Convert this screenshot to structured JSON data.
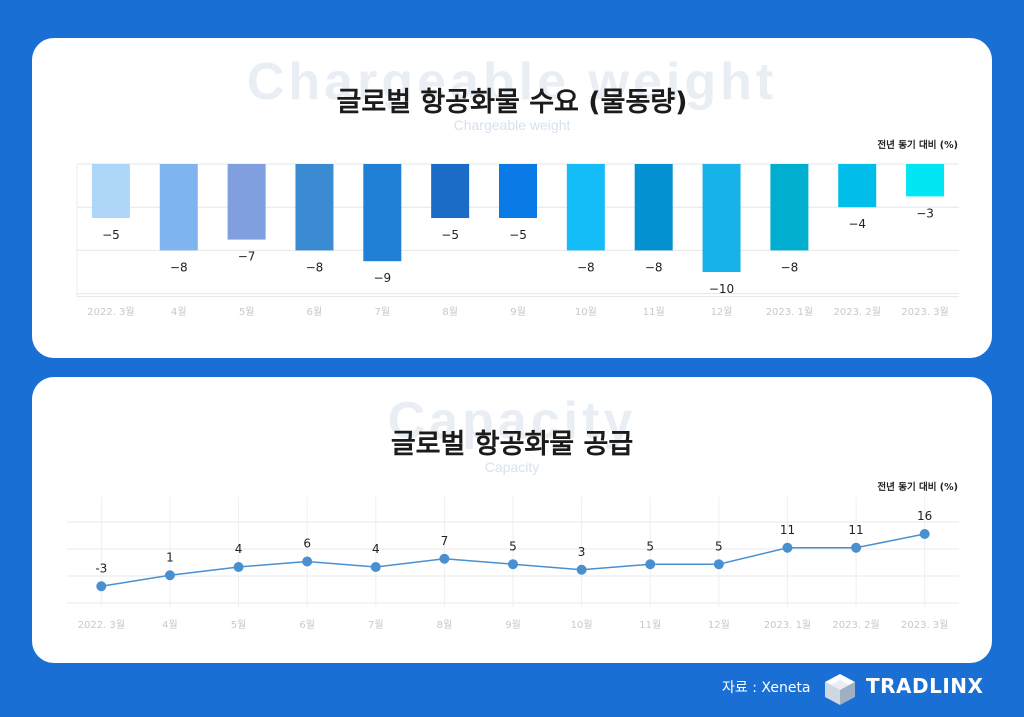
{
  "chart_data": [
    {
      "type": "bar",
      "title": "글로벌 항공화물 수요 (물동량)",
      "subtitle": "Chargeable weight",
      "watermark": "Chargeable weight",
      "unit_label": "전년 동기 대비 (%)",
      "categories": [
        "2022. 3월",
        "4월",
        "5월",
        "6월",
        "7월",
        "8월",
        "9월",
        "10월",
        "11월",
        "12월",
        "2023. 1월",
        "2023. 2월",
        "2023. 3월"
      ],
      "values": [
        -5,
        -8,
        -7,
        -8,
        -9,
        -5,
        -5,
        -8,
        -8,
        -10,
        -8,
        -4,
        -3
      ],
      "value_labels": [
        "−5",
        "−8",
        "−7",
        "−8",
        "−9",
        "−5",
        "−5",
        "−8",
        "−8",
        "−10",
        "−8",
        "−4",
        "−3"
      ],
      "colors": [
        "#aed6f8",
        "#7fb4ee",
        "#7f9fde",
        "#3b8bd2",
        "#1f80d6",
        "#1a6cc6",
        "#0a7ae6",
        "#14bdf7",
        "#0590d2",
        "#16b2e8",
        "#01aed0",
        "#00bde9",
        "#00e6f5"
      ],
      "ylim": [
        -12,
        0
      ],
      "grid": true
    },
    {
      "type": "line",
      "title": "글로벌 항공화물 공급",
      "subtitle": "Capacity",
      "watermark": "Capacity",
      "unit_label": "전년 동기 대비 (%)",
      "categories": [
        "2022. 3월",
        "4월",
        "5월",
        "6월",
        "7월",
        "8월",
        "9월",
        "10월",
        "11월",
        "12월",
        "2023. 1월",
        "2023. 2월",
        "2023. 3월"
      ],
      "values": [
        -3,
        1,
        4,
        6,
        4,
        7,
        5,
        3,
        5,
        5,
        11,
        11,
        16
      ],
      "value_labels": [
        "-3",
        "1",
        "4",
        "6",
        "4",
        "7",
        "5",
        "3",
        "5",
        "5",
        "11",
        "11",
        "16"
      ],
      "color": "#4a8fd0",
      "ylim": [
        -9,
        28
      ],
      "grid": true
    }
  ],
  "footer": {
    "source": "자료 : Xeneta",
    "brand": "TRADLINX",
    "logo_icon": "cube-icon"
  },
  "colors": {
    "background": "#1a6fd4",
    "card": "#ffffff",
    "watermark": "#e8eef4",
    "tick_label": "#c8c8c8",
    "grid": "#e6e6e6"
  }
}
